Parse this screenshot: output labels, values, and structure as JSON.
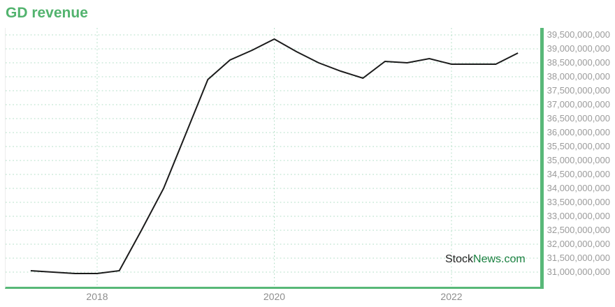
{
  "watermark": {
    "stock": "Stock",
    "news": "News.com"
  },
  "colors": {
    "title_green": "#52b36e",
    "axis_border_green": "#58b878",
    "gridline_green": "#aedcc3",
    "series_line": "#1b1b1b",
    "tick_label_gray": "#9b9b9b",
    "watermark_black": "#222222",
    "watermark_green": "#1a8040"
  },
  "chart_data": {
    "type": "line",
    "title": "GD revenue",
    "xlabel": "",
    "ylabel": "",
    "grid": "dotted",
    "legend": "none",
    "x_tick_labels": [
      "2018",
      "2020",
      "2022"
    ],
    "y_tick_labels": [
      "39,500,000,000",
      "39,000,000,000",
      "38,500,000,000",
      "38,000,000,000",
      "37,500,000,000",
      "37,000,000,000",
      "36,500,000,000",
      "36,000,000,000",
      "35,500,000,000",
      "35,000,000,000",
      "34,500,000,000",
      "34,000,000,000",
      "33,500,000,000",
      "33,000,000,000",
      "32,500,000,000",
      "32,000,000,000",
      "31,500,000,000",
      "31,000,000,000"
    ],
    "ylim": [
      30450000000,
      39750000000
    ],
    "xlim_years": [
      2016.97,
      2023.0
    ],
    "series": [
      {
        "name": "GD revenue",
        "x_quarters": [
          "2017 Q1",
          "2017 Q2",
          "2017 Q3",
          "2017 Q4",
          "2018 Q1",
          "2018 Q2",
          "2018 Q3",
          "2018 Q4",
          "2019 Q1",
          "2019 Q2",
          "2019 Q3",
          "2019 Q4",
          "2020 Q1",
          "2020 Q2",
          "2020 Q3",
          "2020 Q4",
          "2021 Q1",
          "2021 Q2",
          "2021 Q3",
          "2021 Q4",
          "2022 Q1",
          "2022 Q2",
          "2022 Q3"
        ],
        "values_usd": [
          31050000000,
          31000000000,
          30950000000,
          30950000000,
          31050000000,
          32500000000,
          34000000000,
          35950000000,
          37900000000,
          38600000000,
          38950000000,
          39350000000,
          38900000000,
          38500000000,
          38200000000,
          37950000000,
          38550000000,
          38500000000,
          38650000000,
          38450000000,
          38450000000,
          38450000000,
          38850000000
        ]
      }
    ]
  }
}
